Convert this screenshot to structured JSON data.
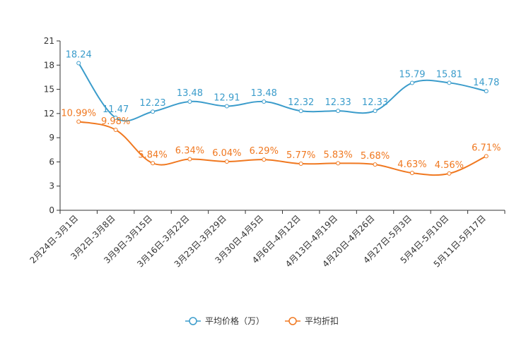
{
  "chart_data": {
    "type": "line",
    "title": "",
    "xlabel": "",
    "ylabel": "",
    "ylim": [
      0,
      21
    ],
    "yticks": [
      0,
      3,
      6,
      9,
      12,
      15,
      18,
      21
    ],
    "categories": [
      "2月24日-3月1日",
      "3月2日-3月8日",
      "3月9日-3月15日",
      "3月16日-3月22日",
      "3月23日-3月29日",
      "3月30日-4月5日",
      "4月6日-4月12日",
      "4月13日-4月19日",
      "4月20日-4月26日",
      "4月27日-5月3日",
      "5月4日-5月10日",
      "5月11日-5月17日"
    ],
    "series": [
      {
        "name": "平均价格（万）",
        "color": "#3b9ccb",
        "values": [
          18.24,
          11.47,
          12.23,
          13.48,
          12.91,
          13.48,
          12.32,
          12.33,
          12.33,
          15.79,
          15.81,
          14.78
        ],
        "labels": [
          "18.24",
          "11.47",
          "12.23",
          "13.48",
          "12.91",
          "13.48",
          "12.32",
          "12.33",
          "12.33",
          "15.79",
          "15.81",
          "14.78"
        ]
      },
      {
        "name": "平均折扣",
        "color": "#f07820",
        "values": [
          10.99,
          9.98,
          5.84,
          6.34,
          6.04,
          6.29,
          5.77,
          5.83,
          5.68,
          4.63,
          4.56,
          6.71
        ],
        "labels": [
          "10.99%",
          "9.98%",
          "5.84%",
          "6.34%",
          "6.04%",
          "6.29%",
          "5.77%",
          "5.83%",
          "5.68%",
          "4.63%",
          "4.56%",
          "6.71%"
        ]
      }
    ],
    "legend": "bottom-center"
  }
}
